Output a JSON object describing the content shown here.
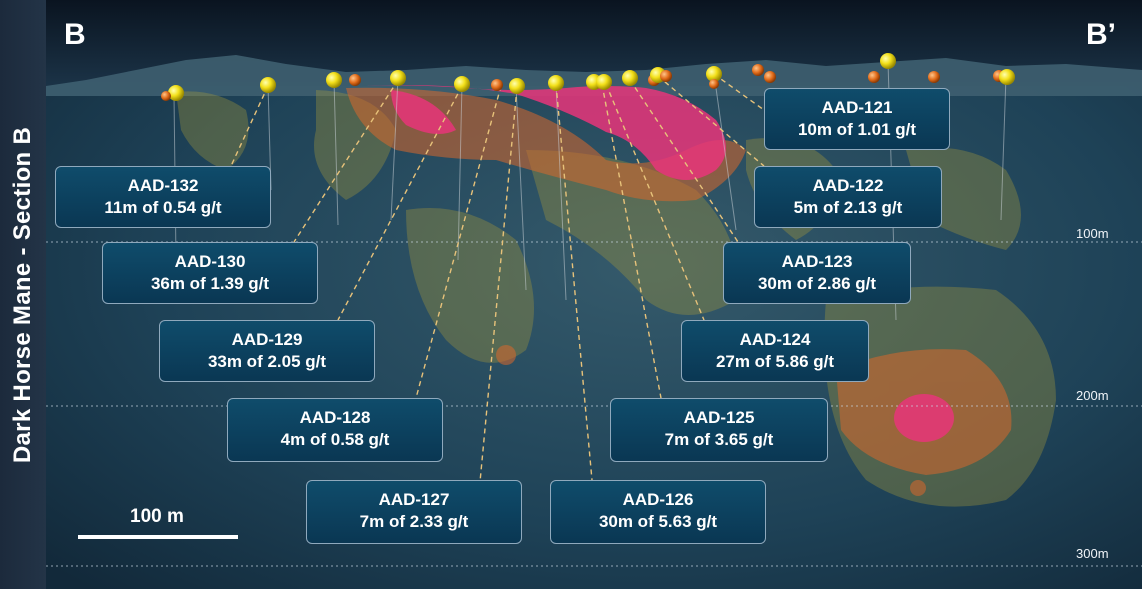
{
  "side_title": "Dark Horse Mane  - Section B",
  "section_start": "B",
  "section_end": "B’",
  "depth_labels": [
    "100m",
    "200m",
    "300m"
  ],
  "scale_label": "100 m",
  "colors": {
    "panel": "#0a3753",
    "panel_border": "#8fa9bd",
    "high_grade": "#e8357a",
    "mid_grade": "#d8672c",
    "low_grade": "#a99a3a",
    "collar": "#f5e11a",
    "leader": "#e7c27a"
  },
  "holes": [
    {
      "id": "AAD-121",
      "result": "10m of 1.01 g/t"
    },
    {
      "id": "AAD-122",
      "result": "5m of 2.13 g/t"
    },
    {
      "id": "AAD-123",
      "result": "30m of 2.86 g/t"
    },
    {
      "id": "AAD-124",
      "result": "27m of 5.86 g/t"
    },
    {
      "id": "AAD-125",
      "result": "7m of 3.65 g/t"
    },
    {
      "id": "AAD-126",
      "result": "30m of 5.63 g/t"
    },
    {
      "id": "AAD-127",
      "result": "7m of 2.33 g/t"
    },
    {
      "id": "AAD-128",
      "result": "4m of 0.58 g/t"
    },
    {
      "id": "AAD-129",
      "result": "33m of 2.05 g/t"
    },
    {
      "id": "AAD-130",
      "result": "36m of 1.39 g/t"
    },
    {
      "id": "AAD-132",
      "result": "11m of 0.54 g/t"
    }
  ]
}
